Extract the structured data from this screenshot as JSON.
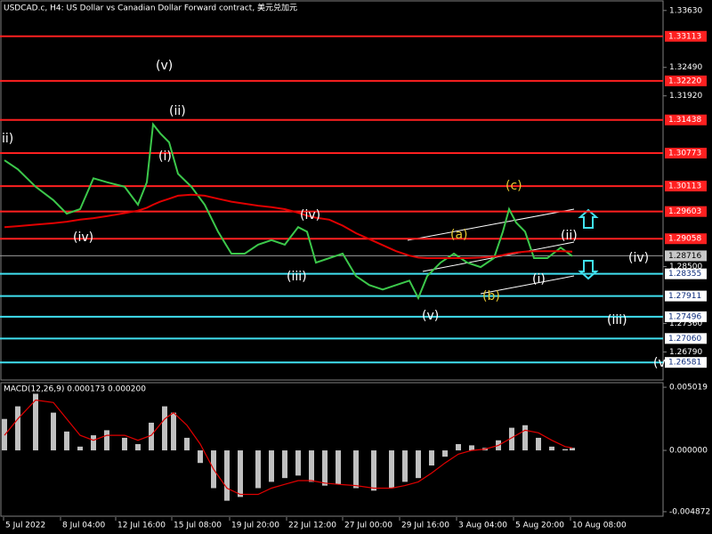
{
  "chart_data": [
    {
      "type": "line",
      "title": "USDCAD.c, H4:  US Dollar vs Canadian Dollar Forward contract, 美元兑加元",
      "x": [
        1.25,
        5,
        10,
        15,
        18.75,
        22.5,
        26.25,
        30,
        35,
        38.75,
        41.25,
        43,
        45,
        47.5,
        50,
        53.75,
        57.5,
        61.25,
        65,
        68.75,
        72.5,
        76.25,
        80,
        83.75,
        86.25,
        88.75,
        92.5,
        96.25,
        100,
        103.75,
        107.5,
        111.25,
        115,
        117.5,
        120,
        123.75,
        127.5,
        131.25,
        135,
        138.75,
        141.25,
        143,
        145,
        147.5,
        150,
        153.75,
        157.5,
        160.75
      ],
      "series": [
        {
          "color": "#3cc84b",
          "values": [
            1.3063,
            1.3045,
            1.301,
            1.2983,
            1.2956,
            1.2965,
            1.3027,
            1.3019,
            1.301,
            1.2974,
            1.3019,
            1.3135,
            1.3117,
            1.3099,
            1.3036,
            1.301,
            1.2974,
            1.292,
            1.2876,
            1.2876,
            1.2894,
            1.2903,
            1.2894,
            1.2929,
            1.292,
            1.2858,
            1.2867,
            1.2876,
            1.2831,
            1.2813,
            1.2804,
            1.2813,
            1.2822,
            1.2787,
            1.2831,
            1.2858,
            1.2876,
            1.2858,
            1.2849,
            1.2867,
            1.292,
            1.2965,
            1.2938,
            1.292,
            1.2867,
            1.2867,
            1.2888,
            1.2871
          ]
        },
        {
          "color": "#e00000",
          "values": [
            1.2929,
            1.2931,
            1.2934,
            1.2937,
            1.294,
            1.2944,
            1.2947,
            1.2951,
            1.2957,
            1.2962,
            1.2968,
            1.2974,
            1.298,
            1.2986,
            1.2992,
            1.2994,
            1.2992,
            1.2986,
            1.298,
            1.2976,
            1.2972,
            1.2969,
            1.2965,
            1.2958,
            1.2952,
            1.2948,
            1.2944,
            1.2932,
            1.2917,
            1.2905,
            1.2893,
            1.2881,
            1.2872,
            1.2868,
            1.2867,
            1.2867,
            1.2867,
            1.2867,
            1.2868,
            1.287,
            1.2873,
            1.2876,
            1.2878,
            1.288,
            1.2881,
            1.2881,
            1.2881,
            1.288
          ]
        }
      ],
      "xlim": [
        0,
        186.25
      ],
      "xticks": [
        {
          "value": 1,
          "label": "5 Jul 2022"
        },
        {
          "value": 17,
          "label": "8 Jul 04:00"
        },
        {
          "value": 32.5,
          "label": "12 Jul 16:00"
        },
        {
          "value": 48.25,
          "label": "15 Jul 08:00"
        },
        {
          "value": 64.5,
          "label": "19 Jul 20:00"
        },
        {
          "value": 80.5,
          "label": "22 Jul 12:00"
        },
        {
          "value": 96.25,
          "label": "27 Jul 00:00"
        },
        {
          "value": 112.25,
          "label": "29 Jul 16:00"
        },
        {
          "value": 128.25,
          "label": "3 Aug 04:00"
        },
        {
          "value": 144.25,
          "label": "5 Aug 20:00"
        },
        {
          "value": 160.25,
          "label": "10 Aug 08:00"
        }
      ],
      "ylim": [
        1.2621,
        1.3384
      ],
      "yticks": [
        {
          "value": 1.3363,
          "label": "1.33630"
        },
        {
          "value": 1.3249,
          "label": "1.32490"
        },
        {
          "value": 1.3192,
          "label": "1.31920"
        },
        {
          "value": 1.285,
          "label": "1.28500"
        },
        {
          "value": 1.2736,
          "label": "1.27360"
        },
        {
          "value": 1.2679,
          "label": "1.26790"
        }
      ],
      "levels": [
        {
          "value": 1.33113,
          "label": "1.33113",
          "color": "#ff2020"
        },
        {
          "value": 1.3222,
          "label": "1.32220",
          "color": "#ff2020"
        },
        {
          "value": 1.31438,
          "label": "1.31438",
          "color": "#ff2020"
        },
        {
          "value": 1.30773,
          "label": "1.30773",
          "color": "#ff2020"
        },
        {
          "value": 1.30113,
          "label": "1.30113",
          "color": "#ff2020"
        },
        {
          "value": 1.29603,
          "label": "1.29603",
          "color": "#ff2020"
        },
        {
          "value": 1.29058,
          "label": "1.29058",
          "color": "#ff2020"
        },
        {
          "value": 1.28716,
          "label": "1.28716",
          "color": "#9a9a9a"
        },
        {
          "value": 1.28355,
          "label": "1.28355",
          "color": "#40e0f0"
        },
        {
          "value": 1.27911,
          "label": "1.27911",
          "color": "#40e0f0"
        },
        {
          "value": 1.27496,
          "label": "1.27496",
          "color": "#40e0f0"
        },
        {
          "value": 1.2706,
          "label": "1.27060",
          "color": "#40e0f0"
        },
        {
          "value": 1.26581,
          "label": "1.26581",
          "color": "#40e0f0"
        }
      ],
      "annotations": [
        {
          "text": "ii)",
          "color": "#ffffff"
        },
        {
          "text": "(iv)",
          "color": "#ffffff"
        },
        {
          "text": "(v)",
          "color": "#ffffff"
        },
        {
          "text": "(ii)",
          "color": "#ffffff"
        },
        {
          "text": "(i)",
          "color": "#ffffff"
        },
        {
          "text": "(iv)",
          "color": "#ffffff"
        },
        {
          "text": "(iii)",
          "color": "#ffffff"
        },
        {
          "text": "(v)",
          "color": "#ffffff"
        },
        {
          "text": "(a)",
          "color": "#e6c832"
        },
        {
          "text": "(b)",
          "color": "#e6c832"
        },
        {
          "text": "(c)",
          "color": "#e6c832"
        },
        {
          "text": "(ii)",
          "color": "#ffffff"
        },
        {
          "text": "(i)",
          "color": "#ffffff"
        },
        {
          "text": "(iv)",
          "color": "#ffffff"
        },
        {
          "text": "(iii)",
          "color": "#ffffff"
        },
        {
          "text": "(v",
          "color": "#ffffff"
        }
      ]
    },
    {
      "type": "bar",
      "title": "MACD(12,26,9) 0.000173 0.000200",
      "x": [
        1.25,
        5,
        10,
        15,
        18.75,
        22.5,
        26.25,
        30,
        35,
        38.75,
        42.5,
        46.25,
        48.75,
        52.5,
        56.25,
        60,
        63.75,
        67.5,
        72.5,
        76.25,
        80,
        83.75,
        87.5,
        91.25,
        95,
        100,
        105,
        110,
        113.75,
        117.5,
        121.25,
        125,
        128.75,
        132.5,
        136.25,
        140,
        143.75,
        147.5,
        151.25,
        155,
        158.75,
        160.75
      ],
      "series": [
        {
          "color": "#c0c0c0",
          "values": [
            0.0025,
            0.0035,
            0.0045,
            0.003,
            0.0015,
            0.0003,
            0.0012,
            0.0016,
            0.001,
            0.0005,
            0.0022,
            0.0035,
            0.003,
            0.001,
            -0.001,
            -0.003,
            -0.004,
            -0.0037,
            -0.003,
            -0.0025,
            -0.0022,
            -0.002,
            -0.0025,
            -0.0028,
            -0.0027,
            -0.003,
            -0.0032,
            -0.003,
            -0.0025,
            -0.0022,
            -0.0012,
            -0.0005,
            0.0005,
            0.0004,
            0.0002,
            0.0008,
            0.0018,
            0.002,
            0.001,
            0.0003,
            0.0001,
            0.0002
          ]
        },
        {
          "color": "#e00000",
          "type": "line",
          "values": [
            0.0012,
            0.0025,
            0.004,
            0.0038,
            0.0025,
            0.0012,
            0.0008,
            0.0012,
            0.0012,
            0.0008,
            0.0012,
            0.0025,
            0.003,
            0.002,
            0.0005,
            -0.0015,
            -0.003,
            -0.0035,
            -0.0035,
            -0.003,
            -0.0027,
            -0.0024,
            -0.0024,
            -0.0026,
            -0.0027,
            -0.0028,
            -0.003,
            -0.003,
            -0.0028,
            -0.0025,
            -0.0018,
            -0.001,
            -0.0003,
            0.0,
            0.0001,
            0.0004,
            0.001,
            0.0016,
            0.0014,
            0.0008,
            0.0003,
            0.0002
          ]
        }
      ],
      "xlim": [
        0,
        186.25
      ],
      "ylim": [
        -0.0053,
        0.00552
      ],
      "yticks": [
        0.005019,
        {
          "value": 0,
          "label": "0.000000"
        },
        -0.004872
      ]
    }
  ]
}
